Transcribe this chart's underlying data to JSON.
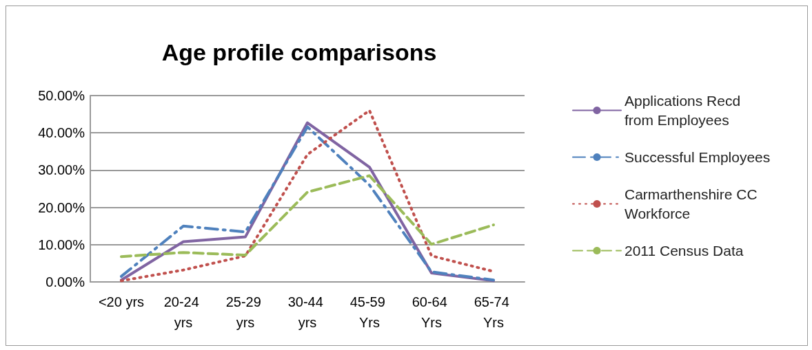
{
  "chart_data": {
    "type": "line",
    "title": "Age profile comparisons",
    "categories": [
      "<20 yrs",
      "20-24 yrs",
      "25-29 yrs",
      "30-44 yrs",
      "45-59 Yrs",
      "60-64 Yrs",
      "65-74 Yrs"
    ],
    "series": [
      {
        "name": "Applications Recd from Employees",
        "color": "#8064a2",
        "line_style": "solid",
        "values": [
          0.5,
          10.8,
          12.1,
          42.7,
          30.8,
          2.4,
          0.3
        ]
      },
      {
        "name": "Successful Employees",
        "color": "#4f81bd",
        "line_style": "dashdot",
        "values": [
          1.5,
          15.0,
          13.4,
          41.6,
          26.0,
          2.7,
          0.5
        ]
      },
      {
        "name": "Carmarthenshire CC Workforce",
        "color": "#c0504d",
        "line_style": "dotted",
        "values": [
          0.3,
          3.2,
          7.0,
          34.2,
          46.0,
          7.0,
          2.8
        ]
      },
      {
        "name": "2011 Census Data",
        "color": "#9bbb59",
        "line_style": "dashed",
        "values": [
          6.8,
          7.9,
          7.2,
          24.1,
          28.5,
          10.1,
          15.3
        ]
      }
    ],
    "ylim": [
      0,
      50
    ],
    "yticks": [
      {
        "value": 0,
        "label": "0.00%"
      },
      {
        "value": 10,
        "label": "10.00%"
      },
      {
        "value": 20,
        "label": "20.00%"
      },
      {
        "value": 30,
        "label": "30.00%"
      },
      {
        "value": 40,
        "label": "40.00%"
      },
      {
        "value": 50,
        "label": "50.00%"
      }
    ],
    "grid": "y",
    "legend": "right",
    "marker": "none"
  }
}
